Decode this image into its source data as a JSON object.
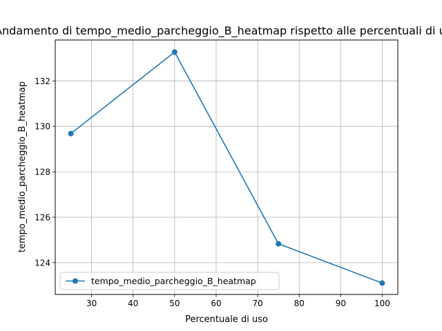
{
  "chart_data": {
    "type": "line",
    "title": "Andamento di tempo_medio_parcheggio_B_heatmap rispetto alle percentuali di uso",
    "xlabel": "Percentuale di uso",
    "ylabel": "tempo_medio_parcheggio_B_heatmap",
    "x": [
      25,
      50,
      75,
      100
    ],
    "series": [
      {
        "name": "tempo_medio_parcheggio_B_heatmap",
        "values": [
          129.68,
          133.27,
          124.83,
          123.1
        ],
        "color": "#1f77b4",
        "marker": "circle"
      }
    ],
    "xlim": [
      21.25,
      103.75
    ],
    "ylim": [
      122.6,
      133.8
    ],
    "xticks": [
      30,
      40,
      50,
      60,
      70,
      80,
      90,
      100
    ],
    "yticks": [
      124,
      126,
      128,
      130,
      132
    ],
    "grid": true,
    "legend": "lower-left"
  }
}
